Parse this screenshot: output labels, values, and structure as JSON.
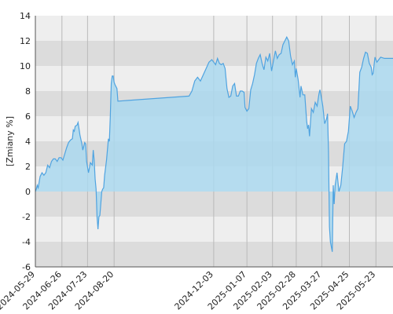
{
  "chart_data": {
    "type": "area",
    "ylabel": "[Zmiany %]",
    "ylim": [
      -6,
      14
    ],
    "y_ticks": [
      -6,
      -4,
      -2,
      0,
      2,
      4,
      6,
      8,
      10,
      12,
      14
    ],
    "x_range": [
      "2024-05-29",
      "2025-06-10"
    ],
    "x_ticks": [
      "2024-05-29",
      "2024-06-26",
      "2024-07-23",
      "2024-08-20",
      "2024-12-03",
      "2025-01-07",
      "2025-02-03",
      "2025-02-28",
      "2025-03-27",
      "2025-04-25",
      "2025-05-23"
    ],
    "grid": true,
    "colors": {
      "line": "#4fa3e0",
      "fill": "#aad8ee",
      "band_dark": "#dcdcdc",
      "band_light": "#eeeeee",
      "vgrid": "#b9b9b9",
      "axis": "#555555"
    },
    "series": [
      {
        "points": [
          [
            "2024-05-29",
            0.0
          ],
          [
            "2024-05-30",
            0.2
          ],
          [
            "2024-05-31",
            0.5
          ],
          [
            "2024-06-01",
            0.3
          ],
          [
            "2024-06-03",
            1.2
          ],
          [
            "2024-06-05",
            1.5
          ],
          [
            "2024-06-07",
            1.3
          ],
          [
            "2024-06-09",
            1.5
          ],
          [
            "2024-06-11",
            2.1
          ],
          [
            "2024-06-13",
            1.9
          ],
          [
            "2024-06-15",
            2.4
          ],
          [
            "2024-06-17",
            2.6
          ],
          [
            "2024-06-19",
            2.6
          ],
          [
            "2024-06-21",
            2.4
          ],
          [
            "2024-06-23",
            2.7
          ],
          [
            "2024-06-25",
            2.7
          ],
          [
            "2024-06-27",
            2.5
          ],
          [
            "2024-06-29",
            3.0
          ],
          [
            "2024-07-01",
            3.5
          ],
          [
            "2024-07-03",
            3.9
          ],
          [
            "2024-07-05",
            4.1
          ],
          [
            "2024-07-07",
            4.2
          ],
          [
            "2024-07-08",
            4.9
          ],
          [
            "2024-07-09",
            4.8
          ],
          [
            "2024-07-10",
            5.2
          ],
          [
            "2024-07-12",
            5.3
          ],
          [
            "2024-07-13",
            5.5
          ],
          [
            "2024-07-15",
            4.5
          ],
          [
            "2024-07-17",
            3.8
          ],
          [
            "2024-07-18",
            3.3
          ],
          [
            "2024-07-20",
            3.9
          ],
          [
            "2024-07-21",
            3.8
          ],
          [
            "2024-07-22",
            2.4
          ],
          [
            "2024-07-24",
            1.5
          ],
          [
            "2024-07-26",
            2.3
          ],
          [
            "2024-07-28",
            2.1
          ],
          [
            "2024-07-29",
            3.3
          ],
          [
            "2024-07-30",
            2.5
          ],
          [
            "2024-07-31",
            1.0
          ],
          [
            "2024-08-01",
            0.2
          ],
          [
            "2024-08-02",
            -2.0
          ],
          [
            "2024-08-03",
            -3.0
          ],
          [
            "2024-08-04",
            -2.0
          ],
          [
            "2024-08-05",
            -1.9
          ],
          [
            "2024-08-07",
            0.0
          ],
          [
            "2024-08-08",
            0.2
          ],
          [
            "2024-08-09",
            0.3
          ],
          [
            "2024-08-10",
            1.3
          ],
          [
            "2024-08-12",
            2.5
          ],
          [
            "2024-08-14",
            4.2
          ],
          [
            "2024-08-15",
            4.0
          ],
          [
            "2024-08-16",
            6.0
          ],
          [
            "2024-08-17",
            8.6
          ],
          [
            "2024-08-18",
            9.2
          ],
          [
            "2024-08-19",
            9.2
          ],
          [
            "2024-08-20",
            8.7
          ],
          [
            "2024-08-21",
            8.5
          ],
          [
            "2024-08-23",
            8.2
          ],
          [
            "2024-08-24",
            7.2
          ],
          [
            "2024-11-07",
            7.6
          ],
          [
            "2024-11-10",
            8.0
          ],
          [
            "2024-11-13",
            8.8
          ],
          [
            "2024-11-16",
            9.1
          ],
          [
            "2024-11-19",
            8.8
          ],
          [
            "2024-11-22",
            9.3
          ],
          [
            "2024-11-25",
            9.8
          ],
          [
            "2024-11-28",
            10.3
          ],
          [
            "2024-12-01",
            10.5
          ],
          [
            "2024-12-03",
            10.3
          ],
          [
            "2024-12-05",
            10.1
          ],
          [
            "2024-12-07",
            10.6
          ],
          [
            "2024-12-09",
            10.2
          ],
          [
            "2024-12-11",
            10.1
          ],
          [
            "2024-12-13",
            10.2
          ],
          [
            "2024-12-15",
            9.8
          ],
          [
            "2024-12-17",
            8.2
          ],
          [
            "2024-12-19",
            7.5
          ],
          [
            "2024-12-21",
            7.6
          ],
          [
            "2024-12-23",
            8.4
          ],
          [
            "2024-12-25",
            8.6
          ],
          [
            "2024-12-27",
            7.6
          ],
          [
            "2024-12-29",
            7.6
          ],
          [
            "2024-12-31",
            8.0
          ],
          [
            "2025-01-02",
            8.0
          ],
          [
            "2025-01-04",
            7.9
          ],
          [
            "2025-01-05",
            6.7
          ],
          [
            "2025-01-07",
            6.4
          ],
          [
            "2025-01-09",
            6.6
          ],
          [
            "2025-01-11",
            8.1
          ],
          [
            "2025-01-13",
            8.6
          ],
          [
            "2025-01-15",
            9.3
          ],
          [
            "2025-01-17",
            10.2
          ],
          [
            "2025-01-19",
            10.6
          ],
          [
            "2025-01-21",
            10.9
          ],
          [
            "2025-01-23",
            10.2
          ],
          [
            "2025-01-25",
            9.7
          ],
          [
            "2025-01-27",
            10.7
          ],
          [
            "2025-01-29",
            10.4
          ],
          [
            "2025-01-31",
            11.0
          ],
          [
            "2025-02-02",
            9.6
          ],
          [
            "2025-02-04",
            10.4
          ],
          [
            "2025-02-06",
            11.2
          ],
          [
            "2025-02-08",
            10.6
          ],
          [
            "2025-02-10",
            10.9
          ],
          [
            "2025-02-12",
            11.0
          ],
          [
            "2025-02-14",
            11.7
          ],
          [
            "2025-02-16",
            12.0
          ],
          [
            "2025-02-18",
            12.3
          ],
          [
            "2025-02-20",
            12.0
          ],
          [
            "2025-02-22",
            10.8
          ],
          [
            "2025-02-24",
            10.1
          ],
          [
            "2025-02-26",
            10.4
          ],
          [
            "2025-02-27",
            9.1
          ],
          [
            "2025-02-28",
            9.8
          ],
          [
            "2025-03-02",
            8.9
          ],
          [
            "2025-03-04",
            7.5
          ],
          [
            "2025-03-05",
            8.4
          ],
          [
            "2025-03-07",
            7.7
          ],
          [
            "2025-03-09",
            7.7
          ],
          [
            "2025-03-11",
            5.6
          ],
          [
            "2025-03-12",
            5.0
          ],
          [
            "2025-03-13",
            5.3
          ],
          [
            "2025-03-14",
            4.4
          ],
          [
            "2025-03-16",
            6.6
          ],
          [
            "2025-03-18",
            6.3
          ],
          [
            "2025-03-20",
            7.1
          ],
          [
            "2025-03-22",
            6.8
          ],
          [
            "2025-03-24",
            7.8
          ],
          [
            "2025-03-25",
            8.1
          ],
          [
            "2025-03-26",
            7.7
          ],
          [
            "2025-03-28",
            6.8
          ],
          [
            "2025-03-30",
            5.4
          ],
          [
            "2025-04-01",
            5.8
          ],
          [
            "2025-04-02",
            6.2
          ],
          [
            "2025-04-03",
            3.2
          ],
          [
            "2025-04-04",
            -2.8
          ],
          [
            "2025-04-05",
            -4.0
          ],
          [
            "2025-04-07",
            -4.8
          ],
          [
            "2025-04-08",
            0.5
          ],
          [
            "2025-04-09",
            -1.0
          ],
          [
            "2025-04-10",
            0.5
          ],
          [
            "2025-04-12",
            1.5
          ],
          [
            "2025-04-14",
            0.0
          ],
          [
            "2025-04-16",
            0.5
          ],
          [
            "2025-04-18",
            2.0
          ],
          [
            "2025-04-20",
            3.8
          ],
          [
            "2025-04-22",
            4.0
          ],
          [
            "2025-04-24",
            4.8
          ],
          [
            "2025-04-26",
            6.8
          ],
          [
            "2025-04-28",
            6.4
          ],
          [
            "2025-04-30",
            5.9
          ],
          [
            "2025-05-02",
            6.3
          ],
          [
            "2025-05-04",
            6.6
          ],
          [
            "2025-05-06",
            9.5
          ],
          [
            "2025-05-08",
            9.9
          ],
          [
            "2025-05-10",
            10.6
          ],
          [
            "2025-05-12",
            11.1
          ],
          [
            "2025-05-14",
            11.0
          ],
          [
            "2025-05-16",
            10.2
          ],
          [
            "2025-05-18",
            9.9
          ],
          [
            "2025-05-19",
            9.3
          ],
          [
            "2025-05-20",
            9.4
          ],
          [
            "2025-05-22",
            10.7
          ],
          [
            "2025-05-24",
            10.3
          ],
          [
            "2025-05-26",
            10.5
          ],
          [
            "2025-05-28",
            10.7
          ],
          [
            "2025-06-01",
            10.6
          ],
          [
            "2025-06-05",
            10.6
          ],
          [
            "2025-06-10",
            10.6
          ]
        ]
      }
    ]
  }
}
